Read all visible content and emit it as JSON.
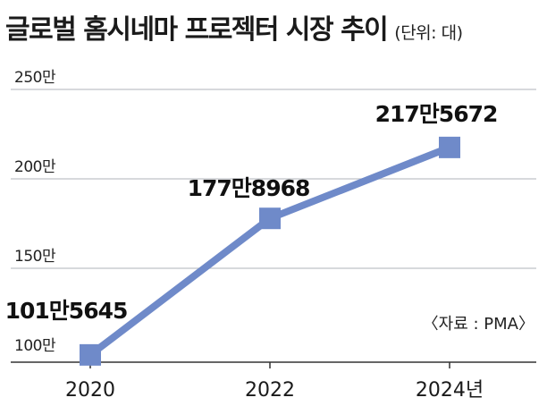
{
  "header": {
    "title": "글로벌 홈시네마 프로젝터 시장 추이",
    "unit": "(단위: 대)"
  },
  "source": "〈자료 : PMA〉",
  "colors": {
    "line": "#6F8AC9",
    "grid": "#bfc2c8",
    "axis": "#333333"
  },
  "chart_data": {
    "type": "line",
    "title": "글로벌 홈시네마 프로젝터 시장 추이",
    "unit": "(단위: 대)",
    "x": [
      "2020",
      "2022",
      "2024년"
    ],
    "values": [
      1015645,
      1778968,
      2175672
    ],
    "data_labels": [
      "101만5645",
      "177만8968",
      "217만5672"
    ],
    "yticks": [
      {
        "value": 1000000,
        "label": "100만"
      },
      {
        "value": 1500000,
        "label": "150만"
      },
      {
        "value": 2000000,
        "label": "200만"
      },
      {
        "value": 2500000,
        "label": "250만"
      }
    ],
    "ylim": [
      1000000,
      2500000
    ],
    "grid": true,
    "marker": "square"
  }
}
